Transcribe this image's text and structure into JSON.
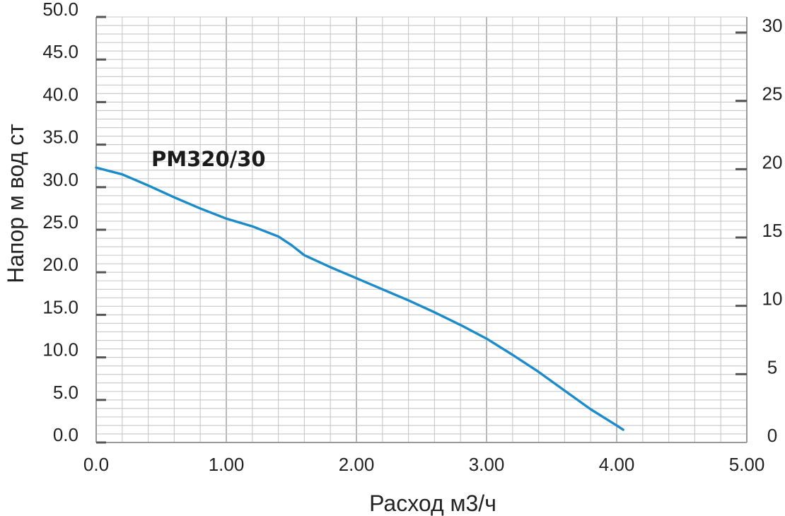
{
  "chart_data": {
    "type": "line",
    "xlabel": "Расход м3/ч",
    "ylabel": "Напор м вод ст",
    "xlim": [
      0,
      5
    ],
    "ylim": [
      0,
      50
    ],
    "y2lim": [
      0,
      30
    ],
    "x_ticks": [
      "0.0",
      "1.00",
      "2.00",
      "3.00",
      "4.00",
      "5.00"
    ],
    "y_ticks": [
      "0.0",
      "5.0",
      "10.0",
      "15.0",
      "20.0",
      "25.0",
      "30.0",
      "35.0",
      "40.0",
      "45.0",
      "50.0"
    ],
    "y2_ticks": [
      "0",
      "5",
      "10",
      "15",
      "20",
      "25",
      "30"
    ],
    "grid": true,
    "annotation": "PM320/30",
    "line_color": "#1b8cc9",
    "series": [
      {
        "x": [
          0.0,
          0.2,
          0.4,
          0.6,
          0.8,
          1.0,
          1.2,
          1.4,
          1.5,
          1.6,
          1.8,
          2.0,
          2.2,
          2.4,
          2.6,
          2.8,
          3.0,
          3.2,
          3.4,
          3.6,
          3.8,
          4.0,
          4.05
        ],
        "y": [
          32.3,
          31.5,
          30.2,
          28.8,
          27.5,
          26.3,
          25.4,
          24.2,
          23.2,
          22.0,
          20.6,
          19.3,
          18.0,
          16.7,
          15.3,
          13.8,
          12.2,
          10.3,
          8.3,
          6.1,
          3.9,
          2.0,
          1.5
        ]
      }
    ]
  }
}
